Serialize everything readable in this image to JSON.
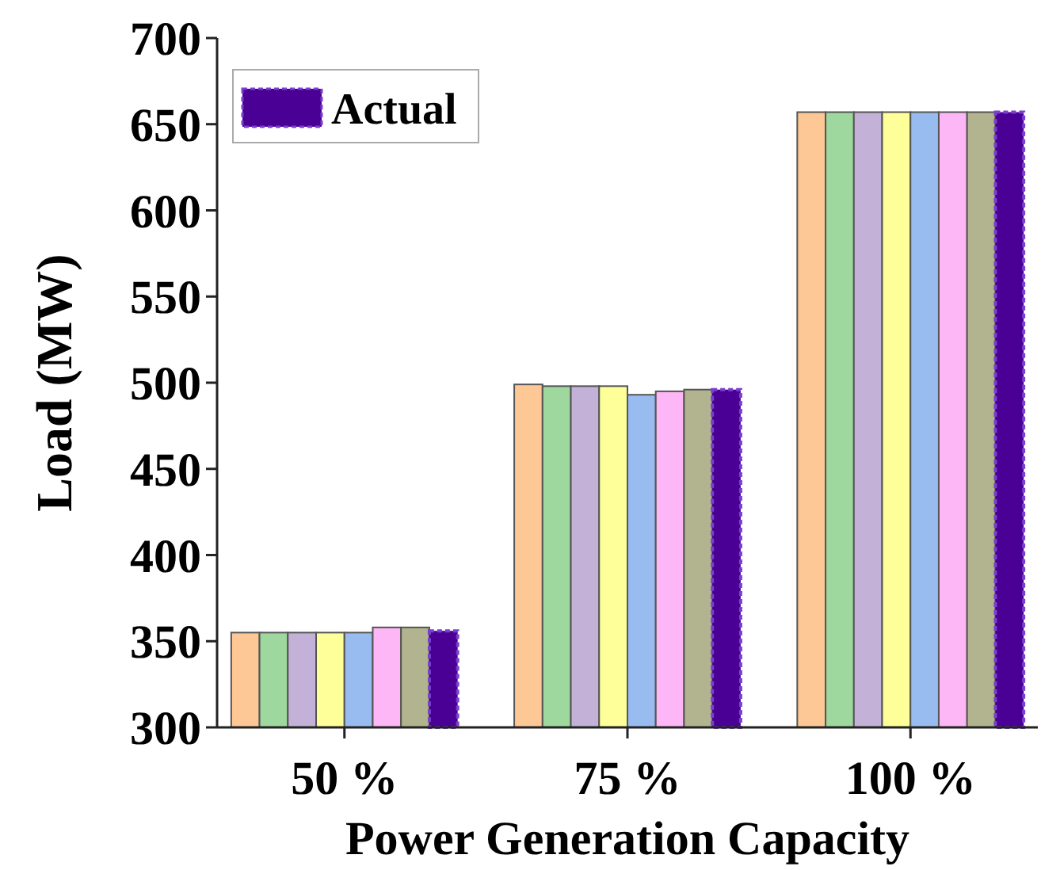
{
  "chart_data": {
    "type": "bar",
    "xlabel": "Power Generation Capacity",
    "ylabel": "Load (MW)",
    "categories": [
      "50 %",
      "75 %",
      "100 %"
    ],
    "series": [
      {
        "color": "#fdc896",
        "values": [
          355,
          499,
          657
        ]
      },
      {
        "color": "#9fd89f",
        "values": [
          355,
          498,
          657
        ]
      },
      {
        "color": "#c3b1d8",
        "values": [
          355,
          498,
          657
        ]
      },
      {
        "color": "#ffff99",
        "values": [
          355,
          498,
          657
        ]
      },
      {
        "color": "#98bbf0",
        "values": [
          355,
          493,
          657
        ]
      },
      {
        "color": "#fdb6f6",
        "values": [
          358,
          495,
          657
        ]
      },
      {
        "color": "#b2b48f",
        "values": [
          358,
          496,
          657
        ]
      },
      {
        "name": "Actual",
        "color": "#4b0095",
        "values": [
          356,
          496,
          657
        ],
        "line_style": "dashed"
      }
    ],
    "ylim": [
      300,
      700
    ],
    "yticks": [
      300,
      350,
      400,
      450,
      500,
      550,
      600,
      650,
      700
    ],
    "legend": "top left",
    "grid": false
  }
}
